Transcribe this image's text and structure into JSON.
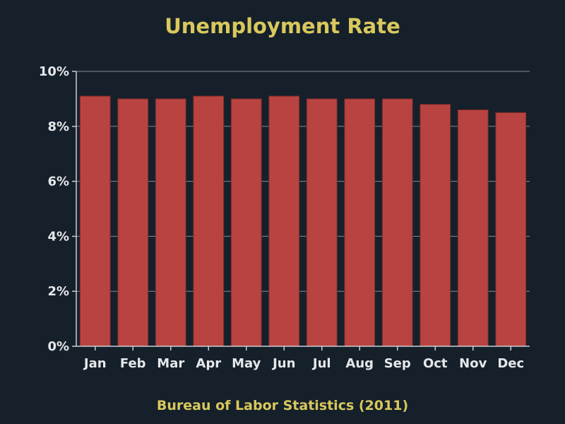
{
  "colors": {
    "background": "#15202b",
    "title": "#d9c85c",
    "bar": "#b94340",
    "bar_stroke": "#7a2a28",
    "axis": "#c9ced3",
    "grid": "#7f8b96",
    "tick_text": "#e6e8ea"
  },
  "chart_data": {
    "type": "bar",
    "title": "Unemployment Rate",
    "subtitle": "Bureau of Labor Statistics (2011)",
    "xlabel": "",
    "ylabel": "",
    "categories": [
      "Jan",
      "Feb",
      "Mar",
      "Apr",
      "May",
      "Jun",
      "Jul",
      "Aug",
      "Sep",
      "Oct",
      "Nov",
      "Dec"
    ],
    "values": [
      9.1,
      9.0,
      9.0,
      9.1,
      9.0,
      9.1,
      9.0,
      9.0,
      9.0,
      8.8,
      8.6,
      8.5
    ],
    "ylim": [
      0,
      10
    ],
    "yticks": [
      0,
      2,
      4,
      6,
      8,
      10
    ],
    "ytick_labels": [
      "0%",
      "2%",
      "4%",
      "6%",
      "8%",
      "10%"
    ],
    "grid": true,
    "legend": "none"
  }
}
